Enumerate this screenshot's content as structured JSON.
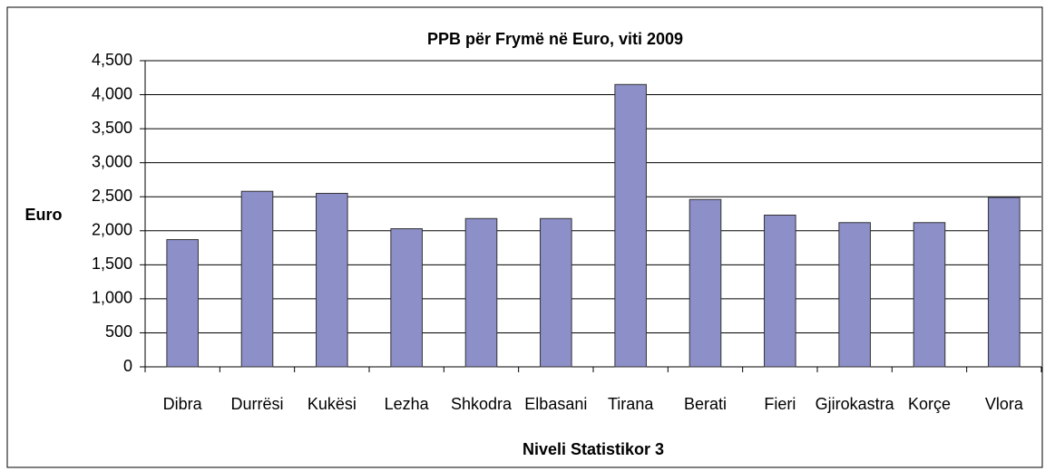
{
  "chart_data": {
    "type": "bar",
    "title": "PPB për Frymë në Euro, viti 2009",
    "x_label": "Niveli Statistikor 3",
    "y_label": "Euro",
    "categories": [
      "Dibra",
      "Durrësi",
      "Kukësi",
      "Lezha",
      "Shkodra",
      "Elbasani",
      "Tirana",
      "Berati",
      "Fieri",
      "Gjirokastra",
      "Korçe",
      "Vlora"
    ],
    "values": [
      1870,
      2580,
      2550,
      2030,
      2180,
      2180,
      4150,
      2460,
      2230,
      2120,
      2120,
      2490
    ],
    "color": "#8c8fc8",
    "ylim": [
      0,
      4500
    ],
    "yticks": [
      0,
      500,
      {
        "value": 1000,
        "label": "1,000"
      },
      {
        "value": 1500,
        "label": "1,500"
      },
      {
        "value": 2000,
        "label": "2,000"
      },
      {
        "value": 2500,
        "label": "2,500"
      },
      {
        "value": 3000,
        "label": "3,000"
      },
      {
        "value": 3500,
        "label": "3,500"
      },
      {
        "value": 4000,
        "label": "4,000"
      },
      {
        "value": 4500,
        "label": "4,500"
      }
    ],
    "grid": true
  }
}
